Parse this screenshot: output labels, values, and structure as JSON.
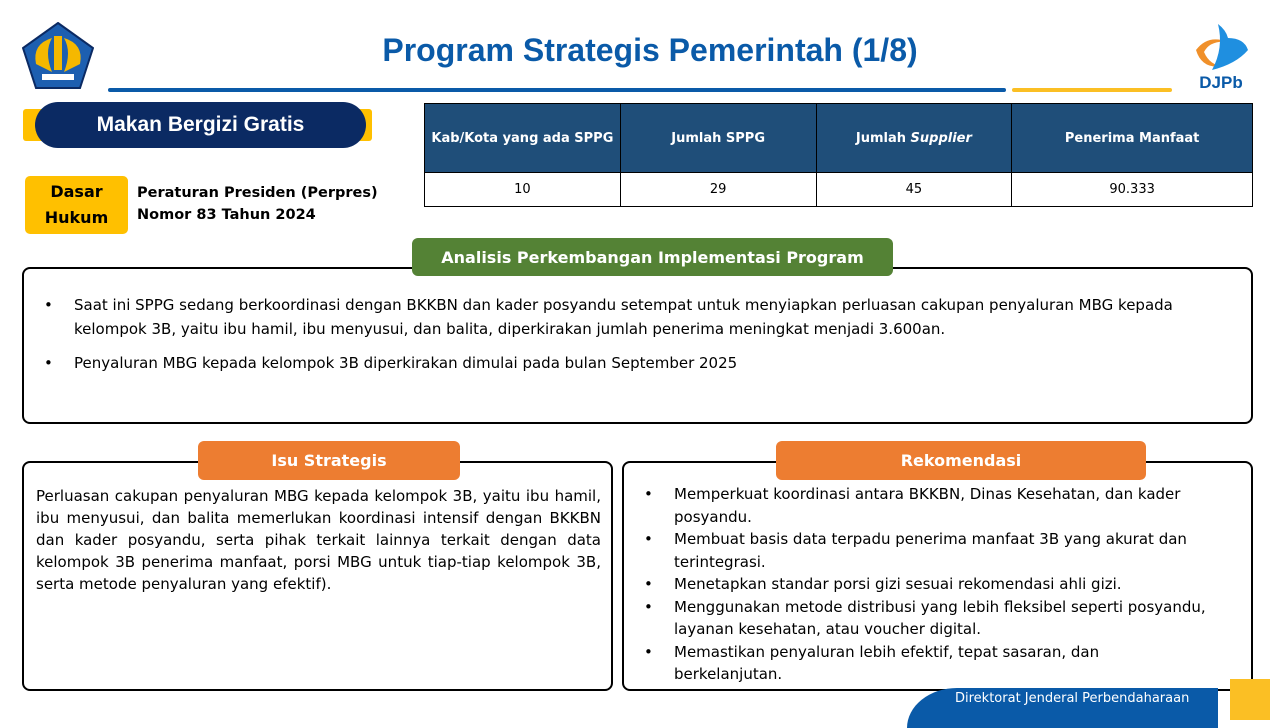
{
  "header": {
    "title": "Program Strategis Pemerintah (1/8)",
    "left_logo": "kemenkeu-logo",
    "right_logo": "DJPb"
  },
  "program": {
    "name": "Makan Bergizi Gratis",
    "legal_label_1": "Dasar",
    "legal_label_2": "Hukum",
    "legal_basis_1": "Peraturan Presiden (Perpres)",
    "legal_basis_2": "Nomor 83 Tahun 2024"
  },
  "table": {
    "headers": [
      "Kab/Kota yang ada SPPG",
      "Jumlah SPPG",
      "Jumlah ",
      "Penerima Manfaat"
    ],
    "header_italic": "Supplier",
    "values": [
      "10",
      "29",
      "45",
      "90.333"
    ]
  },
  "analysis": {
    "title": "Analisis Perkembangan Implementasi Program",
    "bullets": [
      "Saat ini SPPG sedang berkoordinasi dengan BKKBN dan kader posyandu setempat untuk menyiapkan perluasan cakupan penyaluran MBG kepada kelompok 3B, yaitu ibu hamil, ibu menyusui, dan balita, diperkirakan jumlah penerima meningkat menjadi 3.600an.",
      "Penyaluran MBG kepada kelompok 3B diperkirakan dimulai pada bulan September 2025"
    ]
  },
  "issue": {
    "title": "Isu Strategis",
    "text": "Perluasan cakupan penyaluran MBG kepada kelompok 3B, yaitu ibu hamil, ibu menyusui, dan balita memerlukan koordinasi intensif dengan BKKBN dan kader posyandu, serta pihak terkait lainnya terkait dengan data kelompok 3B penerima manfaat, porsi MBG untuk tiap-tiap kelompok 3B, serta metode penyaluran yang efektif)."
  },
  "recommendation": {
    "title": "Rekomendasi",
    "bullets": [
      "Memperkuat koordinasi antara BKKBN, Dinas Kesehatan, dan kader posyandu.",
      "Membuat basis data terpadu penerima manfaat 3B yang akurat dan terintegrasi.",
      "Menetapkan standar porsi gizi sesuai rekomendasi ahli gizi.",
      "Menggunakan metode distribusi  yang lebih fleksibel seperti posyandu, layanan kesehatan, atau voucher digital.",
      "Memastikan penyaluran lebih efektif, tepat sasaran, dan berkelanjutan."
    ]
  },
  "footer": {
    "text": "Direktorat Jenderal Perbendaharaan"
  },
  "colors": {
    "title_blue": "#0a5aa8",
    "navy": "#0b2a63",
    "yellow": "#ffc000",
    "table_header": "#1f4e79",
    "green": "#548235",
    "orange": "#ed7d31"
  }
}
